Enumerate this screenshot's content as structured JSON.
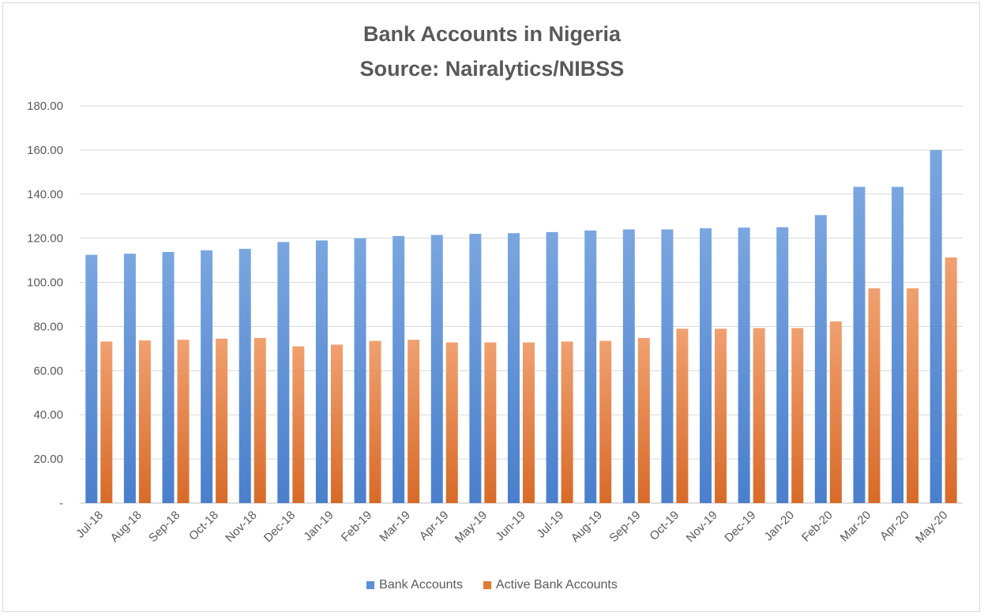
{
  "chart_data": {
    "type": "bar",
    "title": "Bank Accounts in Nigeria",
    "subtitle": "Source: Nairalytics/NIBSS",
    "categories": [
      "Jul-18",
      "Aug-18",
      "Sep-18",
      "Oct-18",
      "Nov-18",
      "Dec-18",
      "Jan-19",
      "Feb-19",
      "Mar-19",
      "Apr-19",
      "May-19",
      "Jun-19",
      "Jul-19",
      "Aug-19",
      "Sep-19",
      "Oct-19",
      "Nov-19",
      "Dec-19",
      "Jan-20",
      "Feb-20",
      "Mar-20",
      "Apr-20",
      "May-20"
    ],
    "series": [
      {
        "name": "Bank Accounts",
        "color": "#5b8fd6",
        "values": [
          112.5,
          113.0,
          113.8,
          114.5,
          115.2,
          118.3,
          119.0,
          120.0,
          121.0,
          121.5,
          122.0,
          122.3,
          122.8,
          123.5,
          124.0,
          124.0,
          124.5,
          124.8,
          125.0,
          130.5,
          143.3,
          143.3,
          160.0
        ]
      },
      {
        "name": "Active Bank Accounts",
        "color": "#e07b3a",
        "values": [
          73.2,
          73.7,
          74.0,
          74.5,
          74.8,
          71.0,
          71.8,
          73.5,
          74.0,
          72.8,
          72.8,
          72.8,
          73.2,
          73.5,
          74.8,
          79.0,
          79.0,
          79.3,
          79.3,
          82.3,
          97.3,
          97.3,
          111.3
        ]
      }
    ],
    "ylim": [
      0,
      180
    ],
    "yticks": [
      "-",
      "20.00",
      "40.00",
      "60.00",
      "80.00",
      "100.00",
      "120.00",
      "140.00",
      "160.00",
      "180.00"
    ],
    "grid": true,
    "legend": "bottom"
  }
}
